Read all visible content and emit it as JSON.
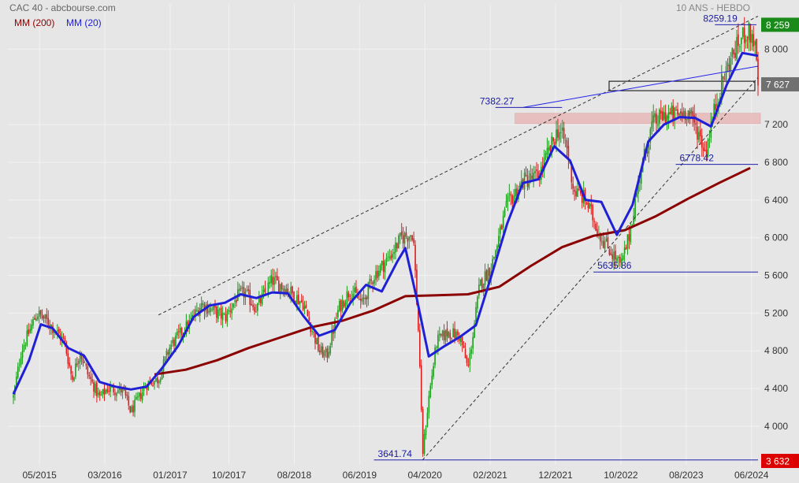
{
  "header": {
    "title": "CAC 40 - abcbourse.com",
    "period": "10 ANS - HEBDO"
  },
  "legend": [
    {
      "label": "MM (200)",
      "color": "#8b0000"
    },
    {
      "label": "MM (20)",
      "color": "#1f1fd6"
    }
  ],
  "chart_data": {
    "type": "candlestick",
    "title": "CAC 40 - abcbourse.com",
    "subtitle": "10 ANS - HEBDO",
    "x_ticks": [
      "05/2015",
      "03/2016",
      "01/2017",
      "10/2017",
      "08/2018",
      "06/2019",
      "04/2020",
      "02/2021",
      "12/2021",
      "10/2022",
      "08/2023",
      "06/2024"
    ],
    "y_ticks": [
      "8 000",
      "7 200",
      "6 800",
      "6 400",
      "6 000",
      "5 600",
      "5 200",
      "4 800",
      "4 400",
      "4 000"
    ],
    "y_range": [
      3590,
      8480
    ],
    "x_range": [
      "2015-01",
      "2024-06"
    ],
    "price_labels": [
      {
        "text": "8 259",
        "value": 8259,
        "color": "#1a8a1a"
      },
      {
        "text": "7 627",
        "value": 7627,
        "color": "#707070"
      },
      {
        "text": "3 632",
        "value": 3632,
        "color": "#dd0000"
      }
    ],
    "annotations": [
      {
        "text": "8259.19",
        "value": 8259.19,
        "date": "2024-05"
      },
      {
        "text": "7382.27",
        "value": 7382.27,
        "date": "2022-01"
      },
      {
        "text": "6778.42",
        "value": 6778.42,
        "date": "2023-10"
      },
      {
        "text": "5635.86",
        "value": 5635.86,
        "date": "2022-10"
      },
      {
        "text": "3641.74",
        "value": 3641.74,
        "date": "2020-03"
      }
    ],
    "support_zone": [
      7210,
      7320
    ],
    "ma200": [
      [
        2016.8,
        4550
      ],
      [
        2017.2,
        4600
      ],
      [
        2017.6,
        4700
      ],
      [
        2018.0,
        4830
      ],
      [
        2018.4,
        4940
      ],
      [
        2018.8,
        5050
      ],
      [
        2019.2,
        5120
      ],
      [
        2019.6,
        5230
      ],
      [
        2020.0,
        5380
      ],
      [
        2020.4,
        5390
      ],
      [
        2020.8,
        5400
      ],
      [
        2021.2,
        5480
      ],
      [
        2021.6,
        5700
      ],
      [
        2022.0,
        5900
      ],
      [
        2022.4,
        6020
      ],
      [
        2022.8,
        6080
      ],
      [
        2023.2,
        6230
      ],
      [
        2023.6,
        6410
      ],
      [
        2024.0,
        6580
      ],
      [
        2024.4,
        6740
      ]
    ],
    "ma20": [
      [
        2015.0,
        4340
      ],
      [
        2015.2,
        4700
      ],
      [
        2015.35,
        5080
      ],
      [
        2015.5,
        5040
      ],
      [
        2015.7,
        4830
      ],
      [
        2015.9,
        4750
      ],
      [
        2016.1,
        4470
      ],
      [
        2016.3,
        4420
      ],
      [
        2016.5,
        4390
      ],
      [
        2016.7,
        4420
      ],
      [
        2016.9,
        4620
      ],
      [
        2017.1,
        4850
      ],
      [
        2017.3,
        5160
      ],
      [
        2017.5,
        5280
      ],
      [
        2017.7,
        5310
      ],
      [
        2017.9,
        5400
      ],
      [
        2018.1,
        5360
      ],
      [
        2018.3,
        5420
      ],
      [
        2018.5,
        5410
      ],
      [
        2018.7,
        5170
      ],
      [
        2018.9,
        4960
      ],
      [
        2019.1,
        5020
      ],
      [
        2019.3,
        5310
      ],
      [
        2019.5,
        5500
      ],
      [
        2019.7,
        5430
      ],
      [
        2019.9,
        5750
      ],
      [
        2020.0,
        5890
      ],
      [
        2020.15,
        5340
      ],
      [
        2020.3,
        4740
      ],
      [
        2020.5,
        4850
      ],
      [
        2020.7,
        4950
      ],
      [
        2020.9,
        5070
      ],
      [
        2021.1,
        5600
      ],
      [
        2021.3,
        6150
      ],
      [
        2021.5,
        6580
      ],
      [
        2021.7,
        6620
      ],
      [
        2021.9,
        6970
      ],
      [
        2022.1,
        6820
      ],
      [
        2022.3,
        6400
      ],
      [
        2022.5,
        6380
      ],
      [
        2022.7,
        6030
      ],
      [
        2022.9,
        6350
      ],
      [
        2023.1,
        7020
      ],
      [
        2023.3,
        7200
      ],
      [
        2023.5,
        7280
      ],
      [
        2023.7,
        7270
      ],
      [
        2023.9,
        7180
      ],
      [
        2024.1,
        7620
      ],
      [
        2024.3,
        7960
      ],
      [
        2024.5,
        7930
      ]
    ],
    "series": [
      {
        "name": "MM (200)",
        "color": "#8b0000"
      },
      {
        "name": "MM (20)",
        "color": "#1f1fd6"
      }
    ]
  }
}
